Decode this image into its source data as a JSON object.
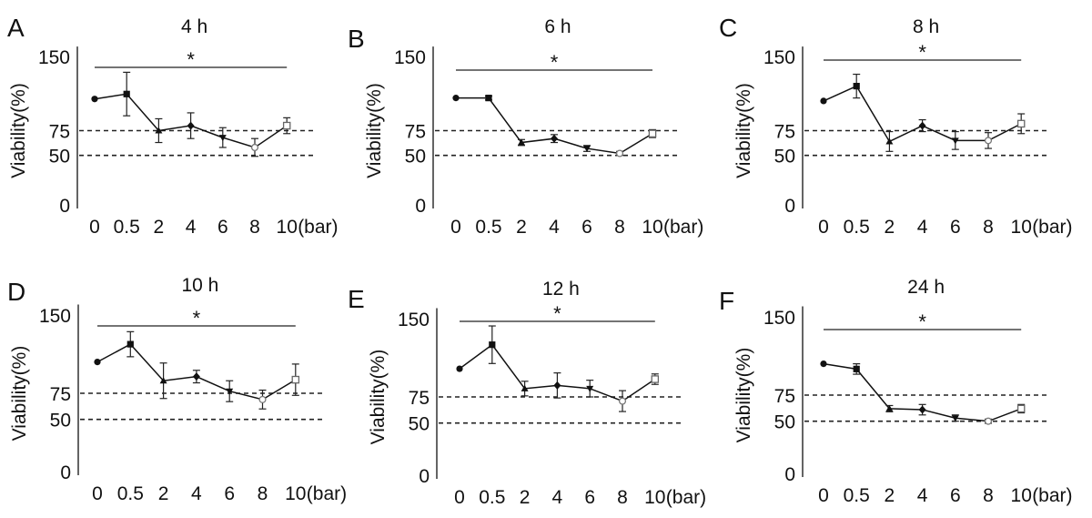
{
  "chart_data": [
    {
      "type": "line",
      "panel": "A",
      "title": "4 h",
      "ylabel": "Viability(%)",
      "unit": "(bar)",
      "significance": "*",
      "categories": [
        "0",
        "0.5",
        "2",
        "4",
        "6",
        "8",
        "10"
      ],
      "yticks": [
        "0",
        "50",
        "75",
        "150"
      ],
      "ylim": [
        0,
        160
      ],
      "reference_lines": [
        75,
        50
      ],
      "values": [
        107,
        112,
        75,
        80,
        68,
        58,
        80
      ],
      "errors": [
        0,
        22,
        12,
        13,
        10,
        9,
        8
      ],
      "markers": [
        "circle",
        "square",
        "triangle",
        "diamond",
        "triangle-down",
        "circle-open",
        "square-open"
      ]
    },
    {
      "type": "line",
      "panel": "B",
      "title": "6 h",
      "ylabel": "Viability(%)",
      "unit": "(bar)",
      "significance": "*",
      "categories": [
        "0",
        "0.5",
        "2",
        "4",
        "6",
        "8",
        "10"
      ],
      "yticks": [
        "0",
        "50",
        "75",
        "150"
      ],
      "ylim": [
        0,
        160
      ],
      "reference_lines": [
        75,
        50
      ],
      "values": [
        108,
        108,
        63,
        67,
        57,
        52,
        72
      ],
      "errors": [
        0,
        2,
        3,
        4,
        3,
        2,
        4
      ],
      "markers": [
        "circle",
        "square",
        "triangle",
        "diamond",
        "triangle-down",
        "circle-open",
        "square-open"
      ]
    },
    {
      "type": "line",
      "panel": "C",
      "title": "8 h",
      "ylabel": "Viability(%)",
      "unit": "(bar)",
      "significance": "*",
      "categories": [
        "0",
        "0.5",
        "2",
        "4",
        "6",
        "8",
        "10"
      ],
      "yticks": [
        "0",
        "50",
        "75",
        "150"
      ],
      "ylim": [
        0,
        160
      ],
      "reference_lines": [
        75,
        50
      ],
      "values": [
        105,
        120,
        64,
        80,
        65,
        65,
        82
      ],
      "errors": [
        0,
        12,
        10,
        6,
        9,
        8,
        10
      ],
      "markers": [
        "circle",
        "square",
        "triangle",
        "diamond",
        "triangle-down",
        "circle-open",
        "square-open"
      ]
    },
    {
      "type": "line",
      "panel": "D",
      "title": "10 h",
      "ylabel": "Viability(%)",
      "unit": "(bar)",
      "significance": "*",
      "categories": [
        "0",
        "0.5",
        "2",
        "4",
        "6",
        "8",
        "10"
      ],
      "yticks": [
        "0",
        "50",
        "75",
        "150"
      ],
      "ylim": [
        0,
        160
      ],
      "reference_lines": [
        75,
        50
      ],
      "values": [
        105,
        122,
        87,
        91,
        77,
        69,
        88
      ],
      "errors": [
        0,
        12,
        17,
        6,
        10,
        9,
        15
      ],
      "markers": [
        "circle",
        "square",
        "triangle",
        "diamond",
        "triangle-down",
        "circle-open",
        "square-open"
      ]
    },
    {
      "type": "line",
      "panel": "E",
      "title": "12 h",
      "ylabel": "Viability(%)",
      "unit": "(bar)",
      "significance": "*",
      "categories": [
        "0",
        "0.5",
        "2",
        "4",
        "6",
        "8",
        "10"
      ],
      "yticks": [
        "0",
        "50",
        "75",
        "150"
      ],
      "ylim": [
        0,
        160
      ],
      "reference_lines": [
        75,
        50
      ],
      "values": [
        102,
        125,
        83,
        86,
        83,
        71,
        92
      ],
      "errors": [
        0,
        18,
        7,
        12,
        8,
        10,
        5
      ],
      "markers": [
        "circle",
        "square",
        "triangle",
        "diamond",
        "triangle-down",
        "circle-open",
        "square-open"
      ]
    },
    {
      "type": "line",
      "panel": "F",
      "title": "24 h",
      "ylabel": "Viability(%)",
      "unit": "(bar)",
      "significance": "*",
      "categories": [
        "0",
        "0.5",
        "2",
        "4",
        "6",
        "8",
        "10"
      ],
      "yticks": [
        "0",
        "50",
        "75",
        "150"
      ],
      "ylim": [
        0,
        160
      ],
      "reference_lines": [
        75,
        50
      ],
      "values": [
        105,
        100,
        62,
        61,
        53,
        50,
        62
      ],
      "errors": [
        0,
        5,
        3,
        5,
        3,
        2,
        4
      ],
      "markers": [
        "circle",
        "square",
        "triangle",
        "diamond",
        "triangle-down",
        "circle-open",
        "square-open"
      ]
    }
  ]
}
